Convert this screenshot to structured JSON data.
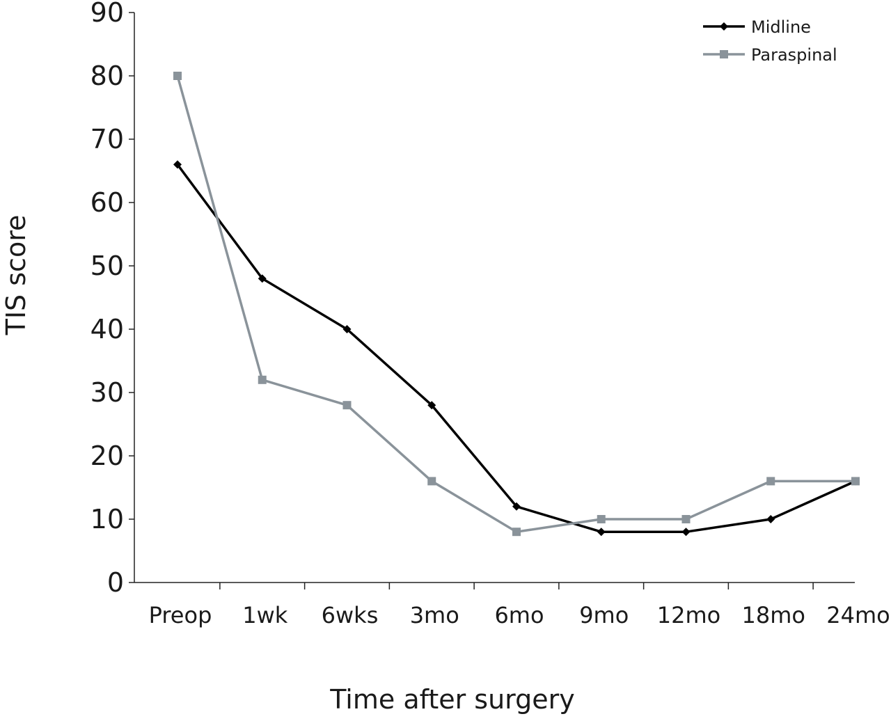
{
  "chart_data": {
    "type": "line",
    "title": "",
    "xlabel": "Time after surgery",
    "ylabel": "TIS score",
    "categories": [
      "Preop",
      "1wk",
      "6wks",
      "3mo",
      "6mo",
      "9mo",
      "12mo",
      "18mo",
      "24mo"
    ],
    "ylim": [
      0,
      90
    ],
    "yticks": [
      0,
      10,
      20,
      30,
      40,
      50,
      60,
      70,
      80,
      90
    ],
    "grid": false,
    "legend": "top-right",
    "series": [
      {
        "name": "Midline",
        "color": "#000000",
        "marker": "diamond",
        "values": [
          66,
          48,
          40,
          28,
          12,
          8,
          8,
          10,
          16
        ]
      },
      {
        "name": "Paraspinal",
        "color": "#8a939a",
        "marker": "square",
        "values": [
          80,
          32,
          28,
          16,
          8,
          10,
          10,
          16,
          16
        ]
      }
    ]
  }
}
